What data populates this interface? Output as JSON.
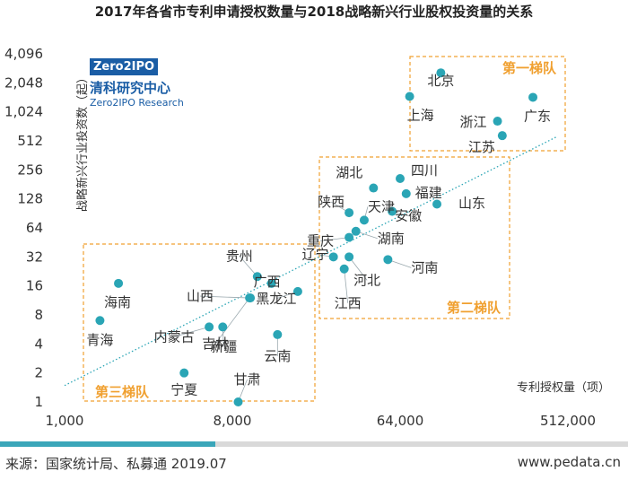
{
  "title": "2017年各省市专利申请授权数量与2018战略新兴行业股权投资量的关系",
  "logo": {
    "box_text": "Zero2IPO",
    "name_cn": "清科研究中心",
    "name_en": "Zero2IPO Research"
  },
  "footer": {
    "source": "来源：国家统计局、私募通 2019.07",
    "website": "www.pedata.cn"
  },
  "colors": {
    "point": "#2aa5b5",
    "tier_box": "#f0a030",
    "trend": "#2aa5b5",
    "bar_primary": "#3aa6b9",
    "bar_secondary": "#d9d9d9"
  },
  "chart_data": {
    "type": "scatter",
    "title": "2017年各省市专利申请授权数量与2018战略新兴行业股权投资量的关系",
    "xlabel": "专利授权量（项）",
    "ylabel": "战略新兴行业投资数（起）",
    "x_scale": "log2",
    "y_scale": "log2",
    "xlim": [
      1000,
      512000
    ],
    "ylim": [
      1,
      4096
    ],
    "x_ticks": [
      1000,
      8000,
      64000,
      512000
    ],
    "x_tick_labels": [
      "1,000",
      "8,000",
      "64,000",
      "512,000"
    ],
    "y_ticks": [
      1,
      2,
      4,
      8,
      16,
      32,
      64,
      128,
      256,
      512,
      1024,
      2048,
      4096
    ],
    "y_tick_labels": [
      "1",
      "2",
      "4",
      "8",
      "16",
      "32",
      "64",
      "128",
      "256",
      "512",
      "1,024",
      "2,048",
      "4,096"
    ],
    "trendline": true,
    "points": [
      {
        "name": "北京",
        "x": 106000,
        "y": 2600
      },
      {
        "name": "上海",
        "x": 72000,
        "y": 1480
      },
      {
        "name": "浙江",
        "x": 214000,
        "y": 820
      },
      {
        "name": "广东",
        "x": 332000,
        "y": 1450
      },
      {
        "name": "江苏",
        "x": 227000,
        "y": 580
      },
      {
        "name": "四川",
        "x": 64000,
        "y": 208
      },
      {
        "name": "湖北",
        "x": 46000,
        "y": 166
      },
      {
        "name": "福建",
        "x": 69000,
        "y": 145
      },
      {
        "name": "山东",
        "x": 101000,
        "y": 113
      },
      {
        "name": "陕西",
        "x": 34000,
        "y": 92
      },
      {
        "name": "天津",
        "x": 41000,
        "y": 77
      },
      {
        "name": "安徽",
        "x": 58000,
        "y": 95
      },
      {
        "name": "重庆",
        "x": 34000,
        "y": 51
      },
      {
        "name": "湖南",
        "x": 37000,
        "y": 59
      },
      {
        "name": "辽宁",
        "x": 28000,
        "y": 32
      },
      {
        "name": "河北",
        "x": 34000,
        "y": 32
      },
      {
        "name": "江西",
        "x": 32000,
        "y": 24
      },
      {
        "name": "河南",
        "x": 55000,
        "y": 30
      },
      {
        "name": "贵州",
        "x": 10900,
        "y": 20
      },
      {
        "name": "广西",
        "x": 13000,
        "y": 17
      },
      {
        "name": "山西",
        "x": 10000,
        "y": 12
      },
      {
        "name": "吉林",
        "x": 9900,
        "y": 12
      },
      {
        "name": "黑龙江",
        "x": 18000,
        "y": 14
      },
      {
        "name": "海南",
        "x": 1950,
        "y": 17
      },
      {
        "name": "青海",
        "x": 1550,
        "y": 7
      },
      {
        "name": "内蒙古",
        "x": 6000,
        "y": 6
      },
      {
        "name": "新疆",
        "x": 7100,
        "y": 6
      },
      {
        "name": "云南",
        "x": 14000,
        "y": 5
      },
      {
        "name": "宁夏",
        "x": 4400,
        "y": 2
      },
      {
        "name": "甘肃",
        "x": 8600,
        "y": 1
      }
    ],
    "groups": [
      {
        "label": "第一梯队",
        "members": [
          "北京",
          "上海",
          "浙江",
          "广东",
          "江苏"
        ]
      },
      {
        "label": "第二梯队",
        "members": [
          "四川",
          "湖北",
          "福建",
          "山东",
          "陕西",
          "天津",
          "安徽",
          "重庆",
          "湖南",
          "辽宁",
          "河北",
          "江西",
          "河南"
        ]
      },
      {
        "label": "第三梯队",
        "members": [
          "贵州",
          "广西",
          "山西",
          "吉林",
          "黑龙江",
          "海南",
          "青海",
          "内蒙古",
          "新疆",
          "云南",
          "宁夏",
          "甘肃"
        ]
      }
    ]
  }
}
